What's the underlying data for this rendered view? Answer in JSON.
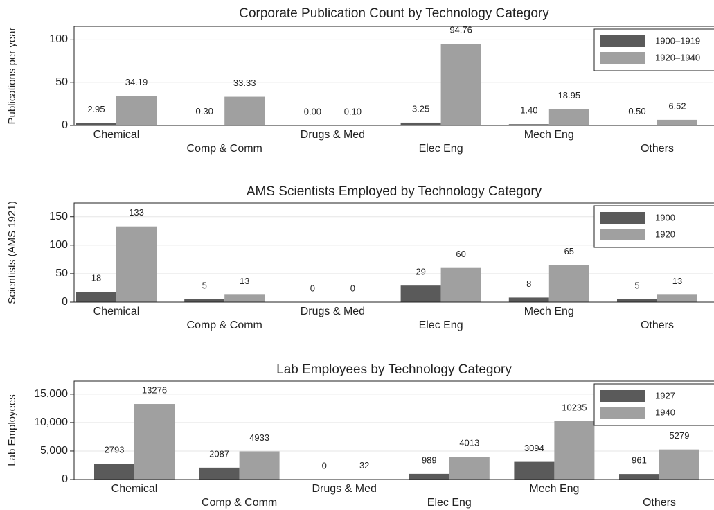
{
  "chart_data": [
    {
      "type": "bar",
      "title": "Corporate Publication Count by Technology Category",
      "y_label": "Publications per year",
      "categories": [
        "Chemical",
        "Comp & Comm",
        "Drugs & Med",
        "Elec Eng",
        "Mech Eng",
        "Others"
      ],
      "series": [
        {
          "name": "1900–1919",
          "color": "#5a5a5a",
          "values": [
            2.95,
            0.3,
            0,
            3.25,
            1.4,
            0.5
          ],
          "value_labels": [
            "2.95",
            "0.30",
            "0.00",
            "3.25",
            "1.40",
            "0.50"
          ]
        },
        {
          "name": "1920–1940",
          "color": "#a0a0a0",
          "values": [
            34.19,
            33.33,
            0.1,
            94.76,
            18.95,
            6.52
          ],
          "value_labels": [
            "34.19",
            "33.33",
            "0.10",
            "94.76",
            "18.95",
            "6.52"
          ]
        }
      ],
      "ylim": [
        0,
        115
      ],
      "yticks": [
        0,
        50,
        100
      ],
      "grid": true,
      "legend": "upper right"
    },
    {
      "type": "bar",
      "title": "AMS Scientists Employed by Technology Category",
      "y_label": "Scientists (AMS 1921)",
      "categories": [
        "Chemical",
        "Comp & Comm",
        "Drugs & Med",
        "Elec Eng",
        "Mech Eng",
        "Others"
      ],
      "series": [
        {
          "name": "1900",
          "color": "#5a5a5a",
          "values": [
            18,
            5,
            0,
            29,
            8,
            5
          ]
        },
        {
          "name": "1920",
          "color": "#a0a0a0",
          "values": [
            133,
            13,
            0,
            60,
            65,
            13
          ]
        }
      ],
      "ylim": [
        0,
        174
      ],
      "yticks": [
        0,
        50,
        100,
        150
      ],
      "grid": true,
      "legend": "upper right"
    },
    {
      "type": "bar",
      "title": "Lab Employees by Technology Category",
      "y_label": "Lab Employees",
      "categories": [
        "Chemical",
        "Comp & Comm",
        "Drugs & Med",
        "Elec Eng",
        "Mech Eng",
        "Others"
      ],
      "series": [
        {
          "name": "1927",
          "color": "#5a5a5a",
          "values": [
            2793,
            2087,
            0,
            989,
            3094,
            961
          ]
        },
        {
          "name": "1940",
          "color": "#a0a0a0",
          "values": [
            13276,
            4933,
            32,
            4013,
            10235,
            5279
          ]
        }
      ],
      "ylim": [
        0,
        17300
      ],
      "yticks": [
        0,
        {
          "value": 5000,
          "label": "5,000"
        },
        {
          "value": 10000,
          "label": "10,000"
        },
        {
          "value": 15000,
          "label": "15,000"
        }
      ],
      "grid": true,
      "legend": "upper right"
    }
  ]
}
